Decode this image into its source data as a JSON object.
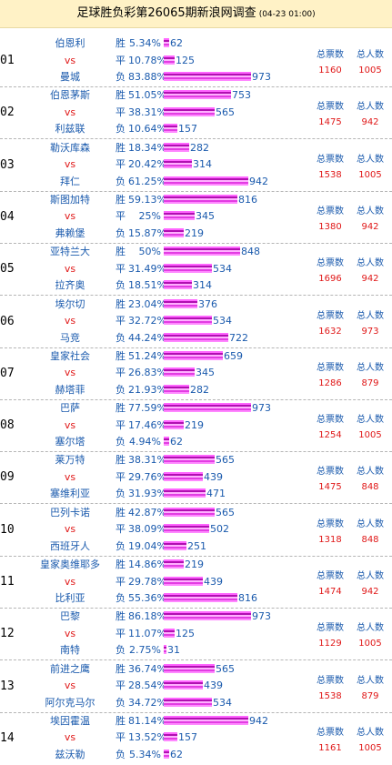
{
  "header": {
    "title": "足球胜负彩第26065期新浪网调查",
    "time": "(04-23 01:00)"
  },
  "labels": {
    "total_votes": "总票数",
    "total_people": "总人数",
    "vs": "vs",
    "win": "胜",
    "draw": "平",
    "lose": "负"
  },
  "matches": [
    {
      "num": "01",
      "home": "伯恩利",
      "away": "曼城",
      "outcomes": [
        {
          "pct": "5.34%",
          "count": 62
        },
        {
          "pct": "10.78%",
          "count": 125
        },
        {
          "pct": "83.88%",
          "count": 973
        }
      ],
      "total_votes": "1160",
      "total_people": "1005"
    },
    {
      "num": "02",
      "home": "伯恩茅斯",
      "away": "利兹联",
      "outcomes": [
        {
          "pct": "51.05%",
          "count": 753
        },
        {
          "pct": "38.31%",
          "count": 565
        },
        {
          "pct": "10.64%",
          "count": 157
        }
      ],
      "total_votes": "1475",
      "total_people": "942"
    },
    {
      "num": "03",
      "home": "勒沃库森",
      "away": "拜仁",
      "outcomes": [
        {
          "pct": "18.34%",
          "count": 282
        },
        {
          "pct": "20.42%",
          "count": 314
        },
        {
          "pct": "61.25%",
          "count": 942
        }
      ],
      "total_votes": "1538",
      "total_people": "1005"
    },
    {
      "num": "04",
      "home": "斯图加特",
      "away": "弗赖堡",
      "outcomes": [
        {
          "pct": "59.13%",
          "count": 816
        },
        {
          "pct": "25%",
          "count": 345
        },
        {
          "pct": "15.87%",
          "count": 219
        }
      ],
      "total_votes": "1380",
      "total_people": "942"
    },
    {
      "num": "05",
      "home": "亚特兰大",
      "away": "拉齐奥",
      "outcomes": [
        {
          "pct": "50%",
          "count": 848
        },
        {
          "pct": "31.49%",
          "count": 534
        },
        {
          "pct": "18.51%",
          "count": 314
        }
      ],
      "total_votes": "1696",
      "total_people": "942"
    },
    {
      "num": "06",
      "home": "埃尔切",
      "away": "马竞",
      "outcomes": [
        {
          "pct": "23.04%",
          "count": 376
        },
        {
          "pct": "32.72%",
          "count": 534
        },
        {
          "pct": "44.24%",
          "count": 722
        }
      ],
      "total_votes": "1632",
      "total_people": "973"
    },
    {
      "num": "07",
      "home": "皇家社会",
      "away": "赫塔菲",
      "outcomes": [
        {
          "pct": "51.24%",
          "count": 659
        },
        {
          "pct": "26.83%",
          "count": 345
        },
        {
          "pct": "21.93%",
          "count": 282
        }
      ],
      "total_votes": "1286",
      "total_people": "879"
    },
    {
      "num": "08",
      "home": "巴萨",
      "away": "塞尔塔",
      "outcomes": [
        {
          "pct": "77.59%",
          "count": 973
        },
        {
          "pct": "17.46%",
          "count": 219
        },
        {
          "pct": "4.94%",
          "count": 62
        }
      ],
      "total_votes": "1254",
      "total_people": "1005"
    },
    {
      "num": "09",
      "home": "莱万特",
      "away": "塞维利亚",
      "outcomes": [
        {
          "pct": "38.31%",
          "count": 565
        },
        {
          "pct": "29.76%",
          "count": 439
        },
        {
          "pct": "31.93%",
          "count": 471
        }
      ],
      "total_votes": "1475",
      "total_people": "848"
    },
    {
      "num": "10",
      "home": "巴列卡诺",
      "away": "西班牙人",
      "outcomes": [
        {
          "pct": "42.87%",
          "count": 565
        },
        {
          "pct": "38.09%",
          "count": 502
        },
        {
          "pct": "19.04%",
          "count": 251
        }
      ],
      "total_votes": "1318",
      "total_people": "848"
    },
    {
      "num": "11",
      "home": "皇家奥维耶多",
      "away": "比利亚",
      "outcomes": [
        {
          "pct": "14.86%",
          "count": 219
        },
        {
          "pct": "29.78%",
          "count": 439
        },
        {
          "pct": "55.36%",
          "count": 816
        }
      ],
      "total_votes": "1474",
      "total_people": "942"
    },
    {
      "num": "12",
      "home": "巴黎",
      "away": "南特",
      "outcomes": [
        {
          "pct": "86.18%",
          "count": 973
        },
        {
          "pct": "11.07%",
          "count": 125
        },
        {
          "pct": "2.75%",
          "count": 31
        }
      ],
      "total_votes": "1129",
      "total_people": "1005"
    },
    {
      "num": "13",
      "home": "前进之鹰",
      "away": "阿尔克马尔",
      "outcomes": [
        {
          "pct": "36.74%",
          "count": 565
        },
        {
          "pct": "28.54%",
          "count": 439
        },
        {
          "pct": "34.72%",
          "count": 534
        }
      ],
      "total_votes": "1538",
      "total_people": "879"
    },
    {
      "num": "14",
      "home": "埃因霍温",
      "away": "兹沃勒",
      "outcomes": [
        {
          "pct": "81.14%",
          "count": 942
        },
        {
          "pct": "13.52%",
          "count": 157
        },
        {
          "pct": "5.34%",
          "count": 62
        }
      ],
      "total_votes": "1161",
      "total_people": "1005"
    }
  ]
}
